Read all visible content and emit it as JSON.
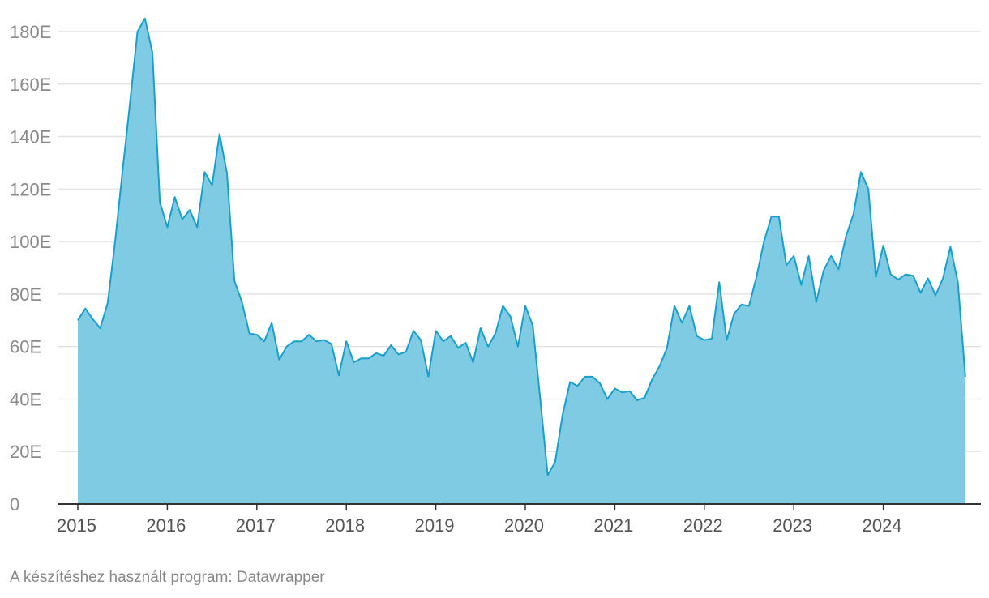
{
  "chart_data": {
    "type": "area",
    "title": "",
    "xlabel": "",
    "ylabel": "",
    "colors": {
      "fill": "#7ecbe3",
      "line": "#1a9fcc",
      "grid": "#e3e3e3",
      "baseline": "#333333"
    },
    "ylim": [
      0,
      185000
    ],
    "ylim_display_max": 180000,
    "yticks": [
      0,
      20000,
      40000,
      60000,
      80000,
      100000,
      120000,
      140000,
      160000,
      180000
    ],
    "ytick_labels": [
      "0",
      "20E",
      "40E",
      "60E",
      "80E",
      "100E",
      "120E",
      "140E",
      "160E",
      "180E"
    ],
    "xticks": [
      2015,
      2016,
      2017,
      2018,
      2019,
      2020,
      2021,
      2022,
      2023,
      2024
    ],
    "xtick_labels": [
      "2015",
      "2016",
      "2017",
      "2018",
      "2019",
      "2020",
      "2021",
      "2022",
      "2023",
      "2024"
    ],
    "grid": true,
    "series": [
      {
        "x_start": "2015-01",
        "x_frequency": "monthly",
        "values": [
          70000,
          74500,
          70500,
          67000,
          76500,
          100000,
          127000,
          153000,
          180000,
          185000,
          172000,
          115000,
          105500,
          117000,
          108500,
          112000,
          105500,
          126500,
          121500,
          141000,
          126000,
          85000,
          77000,
          65000,
          64500,
          62000,
          69000,
          55000,
          60000,
          62000,
          62000,
          64500,
          62000,
          62500,
          61000,
          49000,
          62000,
          54000,
          55500,
          55500,
          57500,
          56500,
          60500,
          57000,
          58000,
          66000,
          62500,
          48500,
          66000,
          62000,
          64000,
          59500,
          61500,
          54000,
          67000,
          60000,
          65000,
          75500,
          71500,
          60000,
          75500,
          68000,
          40000,
          11000,
          16000,
          34000,
          46500,
          45000,
          48500,
          48500,
          46000,
          40000,
          44000,
          42500,
          43000,
          39500,
          40500,
          47500,
          52500,
          59500,
          75500,
          69000,
          75500,
          64000,
          62500,
          63000,
          84500,
          62500,
          72500,
          76000,
          75500,
          86500,
          100000,
          109500,
          109500,
          91000,
          94500,
          83500,
          94500,
          77000,
          89000,
          94500,
          89500,
          102000,
          110500,
          126500,
          120000,
          86500,
          98500,
          87500,
          85500,
          87500,
          87000,
          80500,
          86000,
          79500,
          86000,
          98000,
          84500,
          48500
        ]
      }
    ]
  },
  "footer": {
    "credit": "A készítéshez használt program: Datawrapper"
  }
}
